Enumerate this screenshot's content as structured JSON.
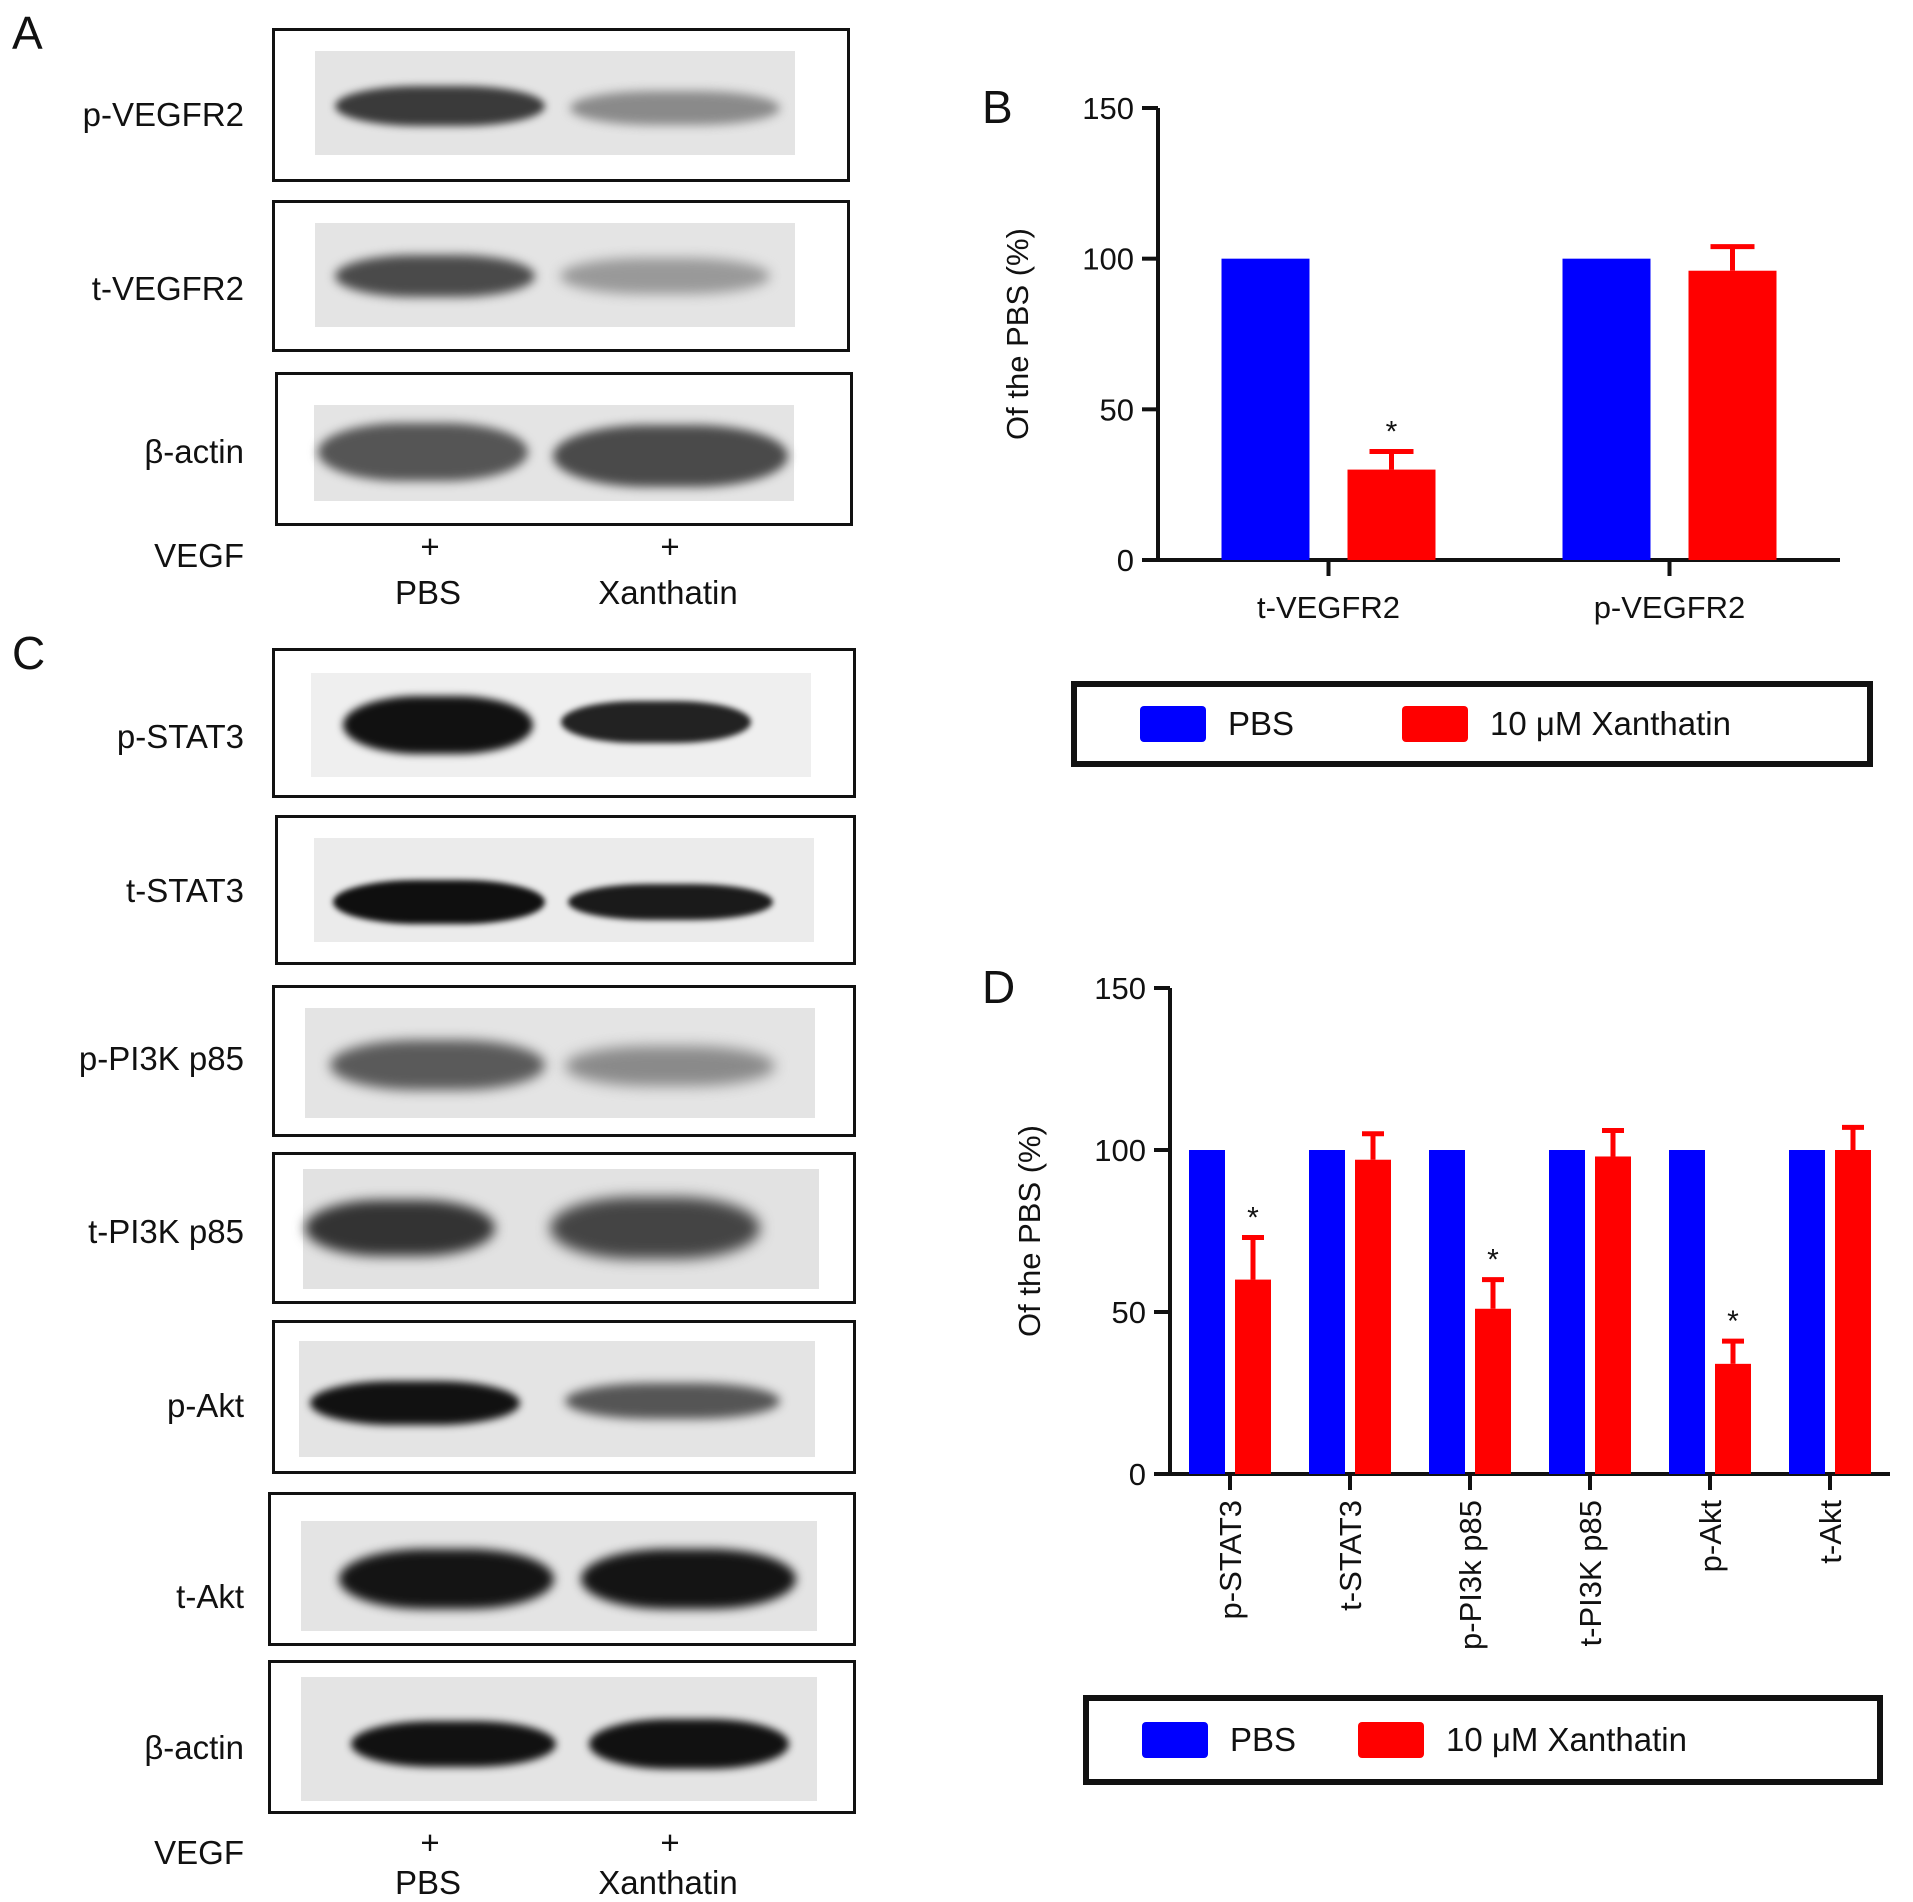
{
  "panels": {
    "A": {
      "letter": "A",
      "blots": [
        "p-VEGFR2",
        "t-VEGFR2",
        "β-actin"
      ],
      "vegf_label": "VEGF",
      "plus": "+",
      "lanes": [
        "PBS",
        "Xanthatin"
      ]
    },
    "B": {
      "letter": "B"
    },
    "C": {
      "letter": "C",
      "blots": [
        "p-STAT3",
        "t-STAT3",
        "p-PI3K p85",
        "t-PI3K p85",
        "p-Akt",
        "t-Akt",
        "β-actin"
      ],
      "vegf_label": "VEGF",
      "plus": "+",
      "lanes": [
        "PBS",
        "Xanthatin"
      ]
    },
    "D": {
      "letter": "D"
    }
  },
  "colors": {
    "pbs": "#0000ff",
    "xanthatin": "#ff0000"
  },
  "chart_data": [
    {
      "panel": "B",
      "type": "bar",
      "categories": [
        "t-VEGFR2",
        "p-VEGFR2"
      ],
      "series": [
        {
          "name": "PBS",
          "values": [
            100,
            100
          ],
          "errors": [
            0,
            0
          ]
        },
        {
          "name": "10 μM Xanthatin",
          "values": [
            30,
            96
          ],
          "errors": [
            6,
            8
          ]
        }
      ],
      "significance": [
        "*",
        ""
      ],
      "ylabel": "Of the PBS (%)",
      "ylim": [
        0,
        150
      ],
      "yticks": [
        0,
        50,
        100,
        150
      ],
      "legend": [
        "PBS",
        "10 μM Xanthatin"
      ],
      "legend_placement": "bottom"
    },
    {
      "panel": "D",
      "type": "bar",
      "categories": [
        "p-STAT3",
        "t-STAT3",
        "p-PI3k p85",
        "t-PI3K p85",
        "p-Akt",
        "t-Akt"
      ],
      "series": [
        {
          "name": "PBS",
          "values": [
            100,
            100,
            100,
            100,
            100,
            100
          ],
          "errors": [
            0,
            0,
            0,
            0,
            0,
            0
          ]
        },
        {
          "name": "10 μM Xanthatin",
          "values": [
            60,
            97,
            51,
            98,
            34,
            100
          ],
          "errors": [
            13,
            8,
            9,
            8,
            7,
            7
          ]
        }
      ],
      "significance": [
        "*",
        "",
        "*",
        "",
        "*",
        ""
      ],
      "ylabel": "Of the PBS (%)",
      "ylim": [
        0,
        150
      ],
      "yticks": [
        0,
        50,
        100,
        150
      ],
      "legend": [
        "PBS",
        "10 μM Xanthatin"
      ],
      "legend_placement": "bottom"
    }
  ]
}
